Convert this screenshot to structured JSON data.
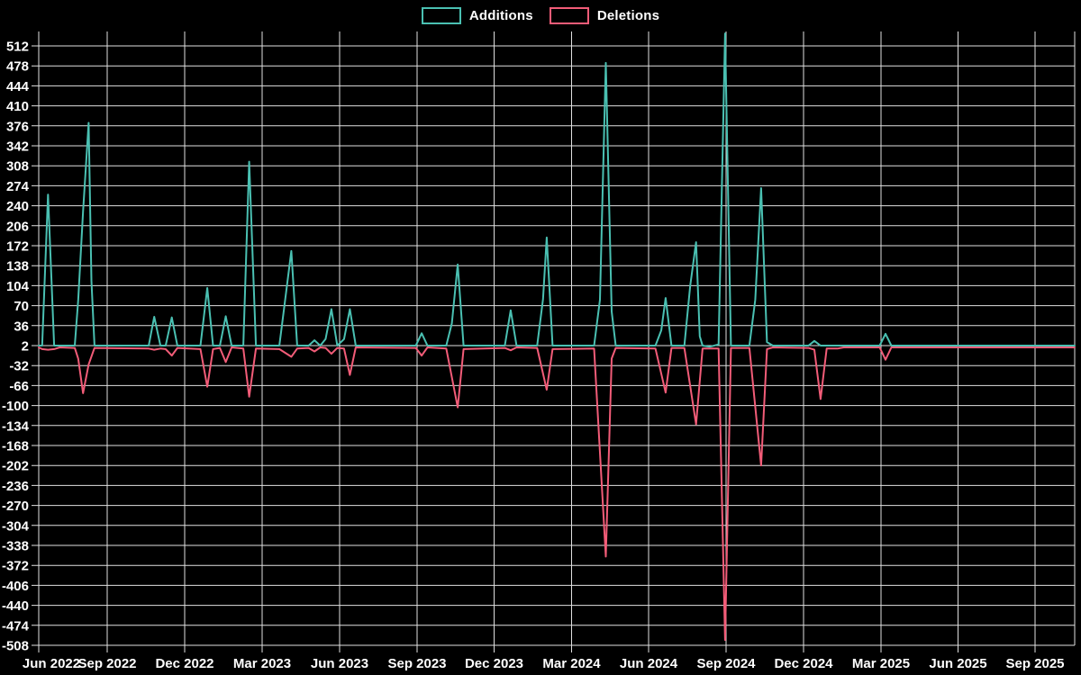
{
  "legend": {
    "items": [
      {
        "label": "Additions",
        "color": "#4ac0b2"
      },
      {
        "label": "Deletions",
        "color": "#f25c78"
      }
    ]
  },
  "colors": {
    "background": "#000000",
    "grid": "#e0e0e0",
    "text": "#ffffff",
    "additions": "#4ac0b2",
    "deletions": "#f25c78"
  },
  "chart_data": {
    "type": "line",
    "title": "",
    "legend_position": "top-center",
    "grid": true,
    "x_axis": {
      "type": "time",
      "tick_labels": [
        "Jun 2022",
        "Sep 2022",
        "Dec 2022",
        "Mar 2023",
        "Jun 2023",
        "Sep 2023",
        "Dec 2023",
        "Mar 2024",
        "Jun 2024",
        "Sep 2024",
        "Dec 2024",
        "Mar 2025",
        "Jun 2025",
        "Sep 2025"
      ],
      "range_decimal_years": [
        2022.417,
        2025.78
      ]
    },
    "y_axis": {
      "tick_values": [
        512,
        478,
        444,
        410,
        376,
        342,
        308,
        274,
        240,
        206,
        172,
        138,
        104,
        70,
        36,
        2,
        -32,
        -66,
        -100,
        -134,
        -168,
        -202,
        -236,
        -270,
        -304,
        -338,
        -372,
        -406,
        -440,
        -474,
        -508
      ],
      "tick_step": 34,
      "baseline": 2
    },
    "series": [
      {
        "name": "Additions",
        "color": "#4ac0b2",
        "points": [
          [
            2022.417,
            2
          ],
          [
            2022.428,
            2
          ],
          [
            2022.447,
            259
          ],
          [
            2022.467,
            2
          ],
          [
            2022.534,
            2
          ],
          [
            2022.545,
            79
          ],
          [
            2022.561,
            230
          ],
          [
            2022.579,
            381
          ],
          [
            2022.588,
            112
          ],
          [
            2022.598,
            2
          ],
          [
            2022.774,
            2
          ],
          [
            2022.792,
            51
          ],
          [
            2022.812,
            2
          ],
          [
            2022.829,
            2
          ],
          [
            2022.849,
            50
          ],
          [
            2022.867,
            2
          ],
          [
            2022.942,
            2
          ],
          [
            2022.964,
            100
          ],
          [
            2022.983,
            2
          ],
          [
            2023.005,
            2
          ],
          [
            2023.024,
            52
          ],
          [
            2023.043,
            2
          ],
          [
            2023.081,
            2
          ],
          [
            2023.1,
            315
          ],
          [
            2023.122,
            2
          ],
          [
            2023.198,
            2
          ],
          [
            2023.207,
            38
          ],
          [
            2023.237,
            163
          ],
          [
            2023.256,
            2
          ],
          [
            2023.293,
            2
          ],
          [
            2023.312,
            11
          ],
          [
            2023.331,
            2
          ],
          [
            2023.348,
            13
          ],
          [
            2023.367,
            64
          ],
          [
            2023.386,
            2
          ],
          [
            2023.408,
            13
          ],
          [
            2023.427,
            64
          ],
          [
            2023.446,
            2
          ],
          [
            2023.641,
            2
          ],
          [
            2023.66,
            23
          ],
          [
            2023.679,
            2
          ],
          [
            2023.74,
            2
          ],
          [
            2023.758,
            40
          ],
          [
            2023.777,
            140
          ],
          [
            2023.796,
            2
          ],
          [
            2023.93,
            2
          ],
          [
            2023.949,
            62
          ],
          [
            2023.968,
            2
          ],
          [
            2024.035,
            2
          ],
          [
            2024.054,
            81
          ],
          [
            2024.066,
            186
          ],
          [
            2024.085,
            2
          ],
          [
            2024.22,
            2
          ],
          [
            2024.239,
            80
          ],
          [
            2024.258,
            483
          ],
          [
            2024.277,
            60
          ],
          [
            2024.29,
            2
          ],
          [
            2024.419,
            2
          ],
          [
            2024.438,
            28
          ],
          [
            2024.452,
            83
          ],
          [
            2024.471,
            2
          ],
          [
            2024.513,
            2
          ],
          [
            2024.532,
            104
          ],
          [
            2024.551,
            178
          ],
          [
            2024.563,
            18
          ],
          [
            2024.572,
            2
          ],
          [
            2024.595,
            0
          ],
          [
            2024.624,
            4
          ],
          [
            2024.645,
            533
          ],
          [
            2024.664,
            2
          ],
          [
            2024.724,
            2
          ],
          [
            2024.743,
            80
          ],
          [
            2024.762,
            270
          ],
          [
            2024.781,
            8
          ],
          [
            2024.8,
            2
          ],
          [
            2024.916,
            2
          ],
          [
            2024.935,
            10
          ],
          [
            2024.955,
            2
          ],
          [
            2025.147,
            2
          ],
          [
            2025.166,
            22
          ],
          [
            2025.185,
            2
          ],
          [
            2025.78,
            2
          ]
        ]
      },
      {
        "name": "Deletions",
        "color": "#f25c78",
        "points": [
          [
            2022.417,
            -1
          ],
          [
            2022.428,
            -4
          ],
          [
            2022.447,
            -5
          ],
          [
            2022.467,
            -4
          ],
          [
            2022.485,
            -1
          ],
          [
            2022.534,
            -2
          ],
          [
            2022.545,
            -20
          ],
          [
            2022.561,
            -79
          ],
          [
            2022.579,
            -30
          ],
          [
            2022.598,
            -2
          ],
          [
            2022.774,
            -3
          ],
          [
            2022.792,
            -5
          ],
          [
            2022.812,
            -3
          ],
          [
            2022.829,
            -4
          ],
          [
            2022.849,
            -15
          ],
          [
            2022.867,
            -2
          ],
          [
            2022.942,
            -4
          ],
          [
            2022.964,
            -68
          ],
          [
            2022.983,
            -4
          ],
          [
            2023.005,
            -2
          ],
          [
            2023.024,
            -26
          ],
          [
            2023.043,
            -1
          ],
          [
            2023.081,
            -3
          ],
          [
            2023.1,
            -85
          ],
          [
            2023.122,
            -3
          ],
          [
            2023.198,
            -4
          ],
          [
            2023.237,
            -17
          ],
          [
            2023.256,
            -3
          ],
          [
            2023.293,
            -2
          ],
          [
            2023.312,
            -8
          ],
          [
            2023.331,
            -1
          ],
          [
            2023.348,
            -2
          ],
          [
            2023.367,
            -12
          ],
          [
            2023.386,
            -2
          ],
          [
            2023.408,
            -3
          ],
          [
            2023.427,
            -48
          ],
          [
            2023.446,
            -1
          ],
          [
            2023.641,
            -2
          ],
          [
            2023.66,
            -15
          ],
          [
            2023.679,
            -1
          ],
          [
            2023.74,
            -3
          ],
          [
            2023.777,
            -103
          ],
          [
            2023.796,
            -4
          ],
          [
            2023.93,
            -2
          ],
          [
            2023.949,
            -6
          ],
          [
            2023.968,
            -1
          ],
          [
            2024.035,
            -2
          ],
          [
            2024.066,
            -73
          ],
          [
            2024.085,
            -4
          ],
          [
            2024.22,
            -3
          ],
          [
            2024.258,
            -357
          ],
          [
            2024.277,
            -20
          ],
          [
            2024.29,
            -2
          ],
          [
            2024.419,
            -3
          ],
          [
            2024.452,
            -78
          ],
          [
            2024.471,
            -2
          ],
          [
            2024.513,
            -2
          ],
          [
            2024.551,
            -132
          ],
          [
            2024.572,
            -3
          ],
          [
            2024.624,
            -3
          ],
          [
            2024.645,
            -499
          ],
          [
            2024.664,
            -2
          ],
          [
            2024.724,
            -2
          ],
          [
            2024.762,
            -202
          ],
          [
            2024.781,
            -4
          ],
          [
            2024.8,
            -1
          ],
          [
            2024.916,
            -2
          ],
          [
            2024.935,
            -5
          ],
          [
            2024.955,
            -89
          ],
          [
            2024.975,
            -3
          ],
          [
            2025.01,
            -3
          ],
          [
            2025.03,
            -1
          ],
          [
            2025.147,
            -1
          ],
          [
            2025.166,
            -22
          ],
          [
            2025.185,
            -1
          ],
          [
            2025.78,
            -1
          ]
        ]
      }
    ]
  }
}
